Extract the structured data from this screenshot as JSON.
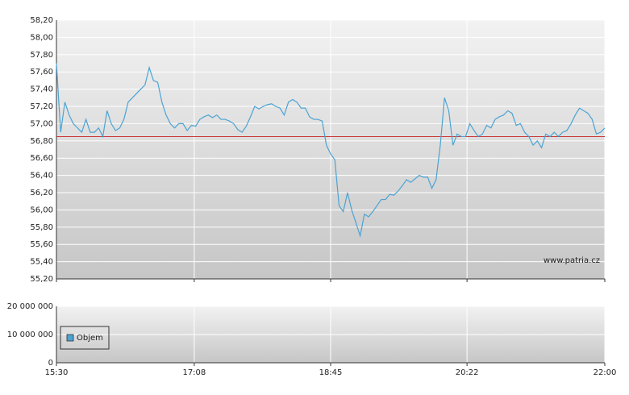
{
  "chart_data": [
    {
      "type": "line",
      "watermark": "www.patria.cz",
      "grid": true,
      "xlim": [
        930,
        1320
      ],
      "ylim": [
        55.2,
        58.2
      ],
      "yticks": [
        {
          "value": 55.2,
          "label": "55,20"
        },
        {
          "value": 55.4,
          "label": "55,40"
        },
        {
          "value": 55.6,
          "label": "55,60"
        },
        {
          "value": 55.8,
          "label": "55,80"
        },
        {
          "value": 56.0,
          "label": "56,00"
        },
        {
          "value": 56.2,
          "label": "56,20"
        },
        {
          "value": 56.4,
          "label": "56,40"
        },
        {
          "value": 56.6,
          "label": "56,60"
        },
        {
          "value": 56.8,
          "label": "56,80"
        },
        {
          "value": 57.0,
          "label": "57,00"
        },
        {
          "value": 57.2,
          "label": "57,20"
        },
        {
          "value": 57.4,
          "label": "57,40"
        },
        {
          "value": 57.6,
          "label": "57,60"
        },
        {
          "value": 57.8,
          "label": "57,80"
        },
        {
          "value": 58.0,
          "label": "58,00"
        },
        {
          "value": 58.2,
          "label": "58,20"
        }
      ],
      "reference_line": 56.85,
      "reference_color": "#cc3333",
      "x": [
        930,
        933,
        936,
        939,
        942,
        945,
        948,
        951,
        954,
        957,
        960,
        963,
        966,
        969,
        972,
        975,
        978,
        981,
        984,
        987,
        990,
        993,
        996,
        999,
        1002,
        1005,
        1008,
        1011,
        1014,
        1017,
        1020,
        1023,
        1026,
        1029,
        1032,
        1035,
        1038,
        1041,
        1044,
        1047,
        1050,
        1053,
        1056,
        1059,
        1062,
        1065,
        1068,
        1071,
        1074,
        1077,
        1080,
        1083,
        1086,
        1089,
        1092,
        1095,
        1098,
        1101,
        1104,
        1107,
        1110,
        1113,
        1116,
        1119,
        1122,
        1125,
        1128,
        1131,
        1134,
        1137,
        1140,
        1143,
        1146,
        1149,
        1152,
        1155,
        1158,
        1161,
        1164,
        1167,
        1170,
        1173,
        1176,
        1179,
        1182,
        1185,
        1188,
        1191,
        1194,
        1197,
        1200,
        1203,
        1206,
        1209,
        1212,
        1215,
        1218,
        1221,
        1224,
        1227,
        1230,
        1233,
        1236,
        1239,
        1242,
        1245,
        1248,
        1251,
        1254,
        1257,
        1260,
        1263,
        1266,
        1269,
        1272,
        1275,
        1278,
        1281,
        1284,
        1287,
        1290,
        1293,
        1296,
        1299,
        1302,
        1305,
        1308,
        1311,
        1314,
        1317,
        1320
      ],
      "series": [
        {
          "color": "#4ba3d3",
          "values": [
            57.7,
            56.9,
            57.25,
            57.1,
            57.0,
            56.95,
            56.9,
            57.05,
            56.9,
            56.9,
            56.95,
            56.85,
            57.15,
            57.0,
            56.92,
            56.95,
            57.05,
            57.25,
            57.3,
            57.35,
            57.4,
            57.45,
            57.65,
            57.5,
            57.48,
            57.25,
            57.1,
            57.0,
            56.95,
            57.0,
            57.0,
            56.92,
            56.98,
            56.97,
            57.05,
            57.08,
            57.1,
            57.07,
            57.1,
            57.05,
            57.05,
            57.03,
            57.0,
            56.93,
            56.9,
            56.97,
            57.08,
            57.2,
            57.17,
            57.2,
            57.22,
            57.23,
            57.2,
            57.18,
            57.1,
            57.25,
            57.28,
            57.25,
            57.18,
            57.18,
            57.08,
            57.05,
            57.05,
            57.03,
            56.75,
            56.65,
            56.58,
            56.05,
            55.98,
            56.2,
            56.0,
            55.85,
            55.7,
            55.95,
            55.92,
            55.98,
            56.05,
            56.12,
            56.12,
            56.18,
            56.17,
            56.22,
            56.28,
            56.35,
            56.32,
            56.36,
            56.4,
            56.38,
            56.38,
            56.25,
            56.35,
            56.75,
            57.3,
            57.15,
            56.75,
            56.88,
            56.85,
            56.85,
            57.0,
            56.92,
            56.85,
            56.88,
            56.98,
            56.95,
            57.05,
            57.08,
            57.1,
            57.15,
            57.12,
            56.98,
            57.0,
            56.9,
            56.85,
            56.75,
            56.8,
            56.72,
            56.88,
            56.85,
            56.9,
            56.85,
            56.9,
            56.92,
            57.0,
            57.1,
            57.18,
            57.15,
            57.12,
            57.05,
            56.88,
            56.9,
            56.95
          ]
        }
      ]
    },
    {
      "type": "bar",
      "grid": true,
      "xlim": [
        930,
        1320
      ],
      "xticks": [
        {
          "value": 930,
          "label": "15:30"
        },
        {
          "value": 1028,
          "label": "17:08"
        },
        {
          "value": 1125,
          "label": "18:45"
        },
        {
          "value": 1222,
          "label": "20:22"
        },
        {
          "value": 1320,
          "label": "22:00"
        }
      ],
      "ylim": [
        0,
        20000000
      ],
      "yticks": [
        0,
        {
          "value": 10000000,
          "label": "10 000 000"
        },
        {
          "value": 20000000,
          "label": "20 000 000"
        }
      ],
      "series": [
        {
          "name": "Objem",
          "color": "#4ba3d3"
        }
      ]
    }
  ]
}
